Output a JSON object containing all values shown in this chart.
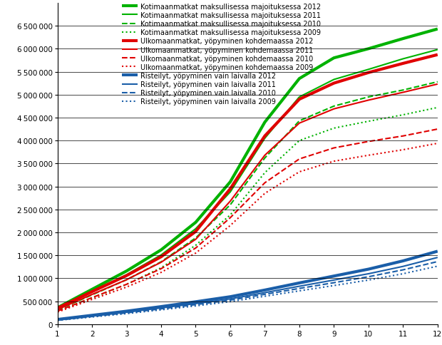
{
  "months": [
    1,
    2,
    3,
    4,
    5,
    6,
    7,
    8,
    9,
    10,
    11,
    12
  ],
  "series": [
    {
      "label": "Kotimaanmatkat maksullisessa majoituksessa 2012",
      "color": "#00b200",
      "linewidth": 3.0,
      "linestyle": "solid",
      "values": [
        360000,
        760000,
        1160000,
        1620000,
        2220000,
        3100000,
        4400000,
        5350000,
        5800000,
        6000000,
        6220000,
        6430000
      ]
    },
    {
      "label": "Kotimaanmatkat maksullisessa majoituksessa 2011",
      "color": "#00b200",
      "linewidth": 1.5,
      "linestyle": "solid",
      "values": [
        340000,
        710000,
        1080000,
        1510000,
        2080000,
        2880000,
        4050000,
        4950000,
        5330000,
        5550000,
        5780000,
        5980000
      ]
    },
    {
      "label": "Kotimaanmatkat maksullisessa majoituksessa 2010",
      "color": "#00b200",
      "linewidth": 1.5,
      "linestyle": "dashed",
      "values": [
        310000,
        640000,
        970000,
        1360000,
        1880000,
        2600000,
        3620000,
        4430000,
        4750000,
        4950000,
        5100000,
        5280000
      ]
    },
    {
      "label": "Kotimaanmatkat maksullisessa majoituksessa 2009",
      "color": "#00b200",
      "linewidth": 1.5,
      "linestyle": "dotted",
      "values": [
        280000,
        570000,
        870000,
        1230000,
        1720000,
        2380000,
        3300000,
        4000000,
        4270000,
        4420000,
        4560000,
        4720000
      ]
    },
    {
      "label": "Ulkomaanmatkat, yöpyminen kohdemaassa 2012",
      "color": "#e00000",
      "linewidth": 3.0,
      "linestyle": "solid",
      "values": [
        350000,
        710000,
        1060000,
        1470000,
        2020000,
        2950000,
        4100000,
        4900000,
        5250000,
        5480000,
        5680000,
        5870000
      ]
    },
    {
      "label": "Ulkomaanmatkat, yöpyminen kohdemaassa 2011",
      "color": "#e00000",
      "linewidth": 1.5,
      "linestyle": "solid",
      "values": [
        320000,
        650000,
        970000,
        1350000,
        1850000,
        2680000,
        3680000,
        4380000,
        4690000,
        4880000,
        5050000,
        5230000
      ]
    },
    {
      "label": "Ulkomaanmatkat, yöpyminen kohdemaassa 2010",
      "color": "#e00000",
      "linewidth": 1.5,
      "linestyle": "dashed",
      "values": [
        285000,
        580000,
        870000,
        1210000,
        1660000,
        2320000,
        3080000,
        3600000,
        3840000,
        3980000,
        4100000,
        4250000
      ]
    },
    {
      "label": "Ulkomaanmatkat, yöpyminen kohdemaassa 2009",
      "color": "#e00000",
      "linewidth": 1.5,
      "linestyle": "dotted",
      "values": [
        265000,
        540000,
        810000,
        1130000,
        1550000,
        2150000,
        2850000,
        3320000,
        3550000,
        3680000,
        3800000,
        3940000
      ]
    },
    {
      "label": "Risteilyt, yöpyminen vain laivalla 2012",
      "color": "#1a5ea8",
      "linewidth": 3.0,
      "linestyle": "solid",
      "values": [
        105000,
        195000,
        285000,
        385000,
        490000,
        600000,
        745000,
        900000,
        1050000,
        1200000,
        1380000,
        1590000
      ]
    },
    {
      "label": "Risteilyt, yöpyminen vain laivalla 2011",
      "color": "#1a5ea8",
      "linewidth": 1.5,
      "linestyle": "solid",
      "values": [
        95000,
        178000,
        262000,
        355000,
        450000,
        553000,
        688000,
        828000,
        963000,
        1100000,
        1260000,
        1455000
      ]
    },
    {
      "label": "Risteilyt, yöpyminen vain laivalla 2010",
      "color": "#1a5ea8",
      "linewidth": 1.5,
      "linestyle": "dashed",
      "values": [
        90000,
        168000,
        248000,
        336000,
        428000,
        525000,
        652000,
        780000,
        905000,
        1035000,
        1185000,
        1365000
      ]
    },
    {
      "label": "Risteilyt, yöpyminen vain laivalla 2009",
      "color": "#1a5ea8",
      "linewidth": 1.5,
      "linestyle": "dotted",
      "values": [
        85000,
        158000,
        232000,
        314000,
        400000,
        492000,
        610000,
        727000,
        843000,
        962000,
        1100000,
        1265000
      ]
    }
  ],
  "ylim": [
    0,
    7000000
  ],
  "yticks": [
    0,
    500000,
    1000000,
    1500000,
    2000000,
    2500000,
    3000000,
    3500000,
    4000000,
    4500000,
    5000000,
    5500000,
    6000000,
    6500000
  ],
  "xlim": [
    1,
    12
  ],
  "xticks": [
    1,
    2,
    3,
    4,
    5,
    6,
    7,
    8,
    9,
    10,
    11,
    12
  ],
  "legend_fontsize": 7.0,
  "tick_fontsize": 7.5,
  "background_color": "#ffffff",
  "grid_color": "#000000"
}
